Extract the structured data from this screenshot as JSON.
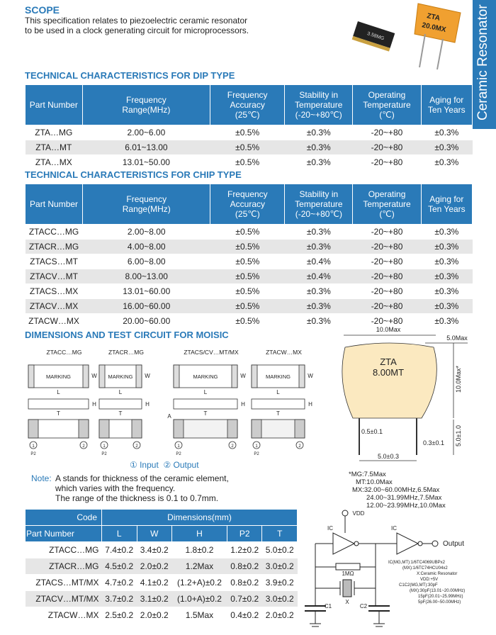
{
  "scope": {
    "title": "SCOPE",
    "lines": [
      "This specification relates to piezoelectric ceramic resonator",
      "to be used in a clock generating circuit for microprocessors."
    ]
  },
  "product_labels": {
    "chip": "3.58MG",
    "radial": [
      "ZTA",
      "20.0MX"
    ]
  },
  "side_tab": "Ceramic Resonator",
  "dip_table": {
    "title": "TECHNICAL CHARACTERISTICS FOR DIP TYPE",
    "headers": [
      [
        "Part Number"
      ],
      [
        "Frequency",
        "Range(MHz)"
      ],
      [
        "Frequency",
        "Accuracy",
        "(25℃)"
      ],
      [
        "Stability in",
        "Temperature",
        "(-20~+80℃)"
      ],
      [
        "Operating",
        "Temperature",
        "(℃)"
      ],
      [
        "Aging for",
        "Ten Years"
      ]
    ],
    "rows": [
      [
        "ZTA…MG",
        "2.00~6.00",
        "±0.5%",
        "±0.3%",
        "-20~+80",
        "±0.3%"
      ],
      [
        "ZTA…MT",
        "6.01~13.00",
        "±0.5%",
        "±0.3%",
        "-20~+80",
        "±0.3%"
      ],
      [
        "ZTA…MX",
        "13.01~50.00",
        "±0.5%",
        "±0.3%",
        "-20~+80",
        "±0.3%"
      ]
    ]
  },
  "chip_table": {
    "title": "TECHNICAL CHARACTERISTICS FOR CHIP TYPE",
    "headers": [
      [
        "Part Number"
      ],
      [
        "Frequency",
        "Range(MHz)"
      ],
      [
        "Frequency",
        "Accuracy",
        "(25℃)"
      ],
      [
        "Stability in",
        "Temperature",
        "(-20~+80℃)"
      ],
      [
        "Operating",
        "Temperature",
        "(℃)"
      ],
      [
        "Aging for",
        "Ten Years"
      ]
    ],
    "rows": [
      [
        "ZTACC…MG",
        "2.00~8.00",
        "±0.5%",
        "±0.3%",
        "-20~+80",
        "±0.3%"
      ],
      [
        "ZTACR…MG",
        "4.00~8.00",
        "±0.5%",
        "±0.3%",
        "-20~+80",
        "±0.3%"
      ],
      [
        "ZTACS…MT",
        "6.00~8.00",
        "±0.5%",
        "±0.4%",
        "-20~+80",
        "±0.3%"
      ],
      [
        "ZTACV…MT",
        "8.00~13.00",
        "±0.5%",
        "±0.4%",
        "-20~+80",
        "±0.3%"
      ],
      [
        "ZTACS…MX",
        "13.01~60.00",
        "±0.5%",
        "±0.3%",
        "-20~+80",
        "±0.3%"
      ],
      [
        "ZTACV…MX",
        "16.00~60.00",
        "±0.5%",
        "±0.3%",
        "-20~+80",
        "±0.3%"
      ],
      [
        "ZTACW…MX",
        "20.00~60.00",
        "±0.5%",
        "±0.3%",
        "-20~+80",
        "±0.3%"
      ]
    ]
  },
  "dimensions": {
    "title": "DIMENSIONS AND TEST CIRCUIT FOR MOISIC",
    "parts": [
      "ZTACC…MG",
      "ZTACR…MG",
      "ZTACS/CV…MT/MX",
      "ZTACW…MX"
    ],
    "marking": "MARKING",
    "letters": {
      "L": "L",
      "W": "W",
      "H": "H",
      "T": "T",
      "A": "A",
      "P": "P2"
    },
    "pins": [
      "1",
      "2"
    ],
    "legend": [
      "① Input",
      "② Output"
    ],
    "note": {
      "label": "Note:",
      "lines": [
        "A stands for thickness of the ceramic element,",
        "which varies with the frequency.",
        "The range of the thickness is 0.1 to 0.7mm."
      ]
    }
  },
  "radial": {
    "width": "10.0Max",
    "top": "5.0Max",
    "marking": [
      "ZTA",
      "8.00MT"
    ],
    "height": "10.0Max*",
    "lead_len": "5.0±1.0",
    "lead_dia": "0.5±0.1",
    "lead_thick": "0.3±0.1",
    "pitch": "5.0±0.3",
    "notes": [
      "*MG:7.5Max",
      "MT:10.0Max",
      "MX:32.00~60.00MHz,6.5Max",
      "24.00~31.99MHz,7.5Max",
      "12.00~23.99MHz,10.0Max"
    ]
  },
  "dims_table": {
    "code": "Code",
    "dims": "Dimensions(mm)",
    "part": "Part Number",
    "cols": [
      "L",
      "W",
      "H",
      "P2",
      "T"
    ],
    "rows": [
      [
        "ZTACC…MG",
        "7.4±0.2",
        "3.4±0.2",
        "1.8±0.2",
        "1.2±0.2",
        "5.0±0.2"
      ],
      [
        "ZTACR…MG",
        "4.5±0.2",
        "2.0±0.2",
        "1.2Max",
        "0.8±0.2",
        "3.0±0.2"
      ],
      [
        "ZTACS…MT/MX",
        "4.7±0.2",
        "4.1±0.2",
        "(1.2+A)±0.2",
        "0.8±0.2",
        "3.9±0.2"
      ],
      [
        "ZTACV…MT/MX",
        "3.7±0.2",
        "3.1±0.2",
        "(1.0+A)±0.2",
        "0.7±0.2",
        "3.0±0.2"
      ],
      [
        "ZTACW…MX",
        "2.5±0.2",
        "2.0±0.2",
        "1.5Max",
        "0.4±0.2",
        "2.0±0.2"
      ]
    ]
  },
  "circuit": {
    "vdd": "VDD",
    "ic": [
      "IC",
      "IC"
    ],
    "output": "Output",
    "resistor": "1MΩ",
    "crystal": "X",
    "c1": "C1",
    "c2": "C2",
    "notes": [
      "IC(MG,MT):1/6TC4069UBPx2",
      "(MX):1/6TC74HCU04x2",
      "X:Ceramic Resonator",
      "VDD:+5V",
      "C1C2(MG,MT):30pF",
      "(MX):30pF(13.01~20.00MHz)",
      "15pF(20.01~25.99MHz)",
      "5pF(26.00~50.00MHz)"
    ]
  }
}
